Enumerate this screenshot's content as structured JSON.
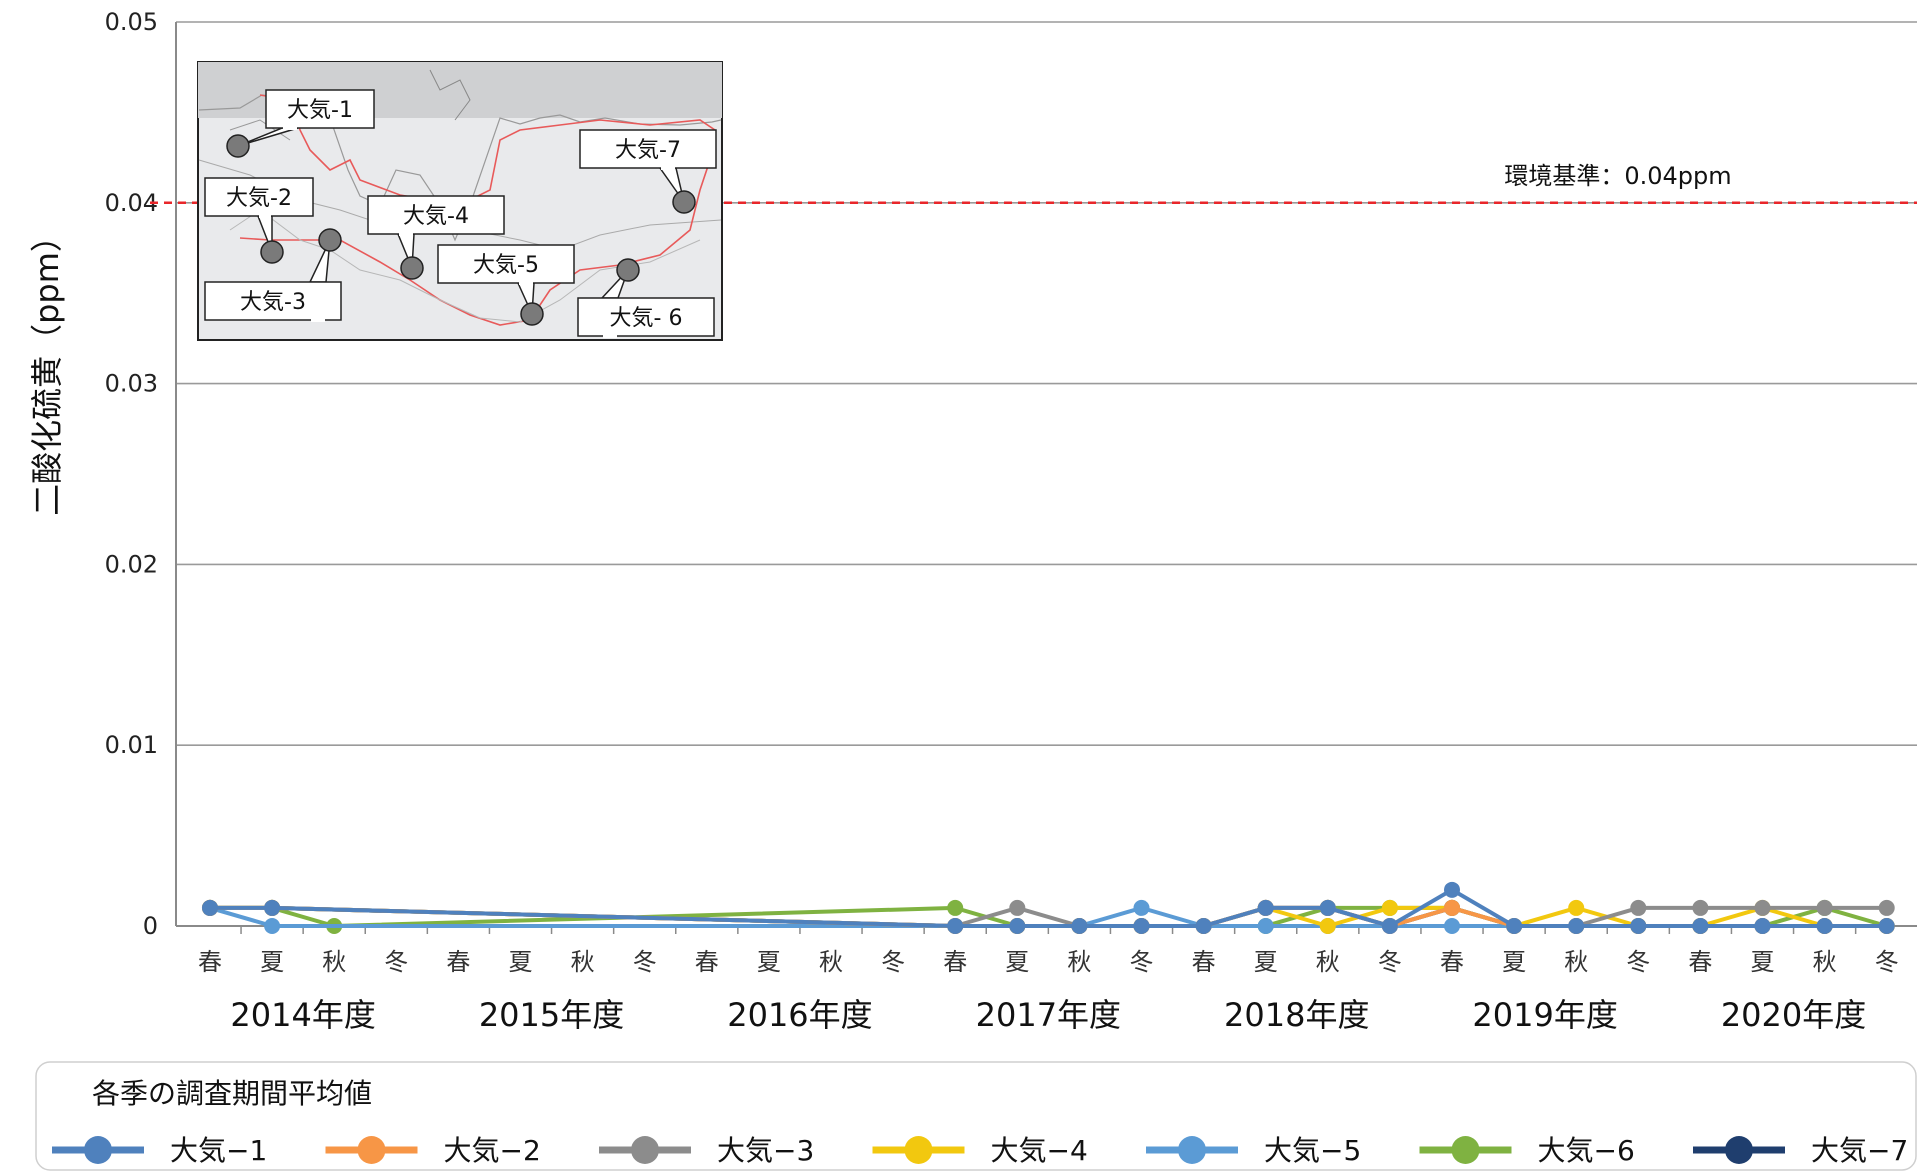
{
  "chart_data": {
    "type": "line",
    "ylabel": "二酸化硫黄（ppm）",
    "xlabel": "",
    "ylim": [
      0,
      0.05
    ],
    "yticks": [
      "0",
      "0.01",
      "0.02",
      "0.03",
      "0.04",
      "0.05"
    ],
    "grid": true,
    "seasons": [
      "春",
      "夏",
      "秋",
      "冬"
    ],
    "years": [
      "2014年度",
      "2015年度",
      "2016年度",
      "2017年度",
      "2018年度",
      "2019年度",
      "2020年度"
    ],
    "reference_line": {
      "value": 0.04,
      "label": "環境基準：0.04ppm",
      "color": "#e8262a"
    },
    "legend": {
      "title": "各季の調査期間平均値",
      "placement": "bottom"
    },
    "series": [
      {
        "name": "大気-1",
        "color": "#4f81bd",
        "points": [
          [
            0,
            0.001
          ],
          [
            1,
            0.001
          ],
          [
            12,
            0
          ],
          [
            13,
            0
          ],
          [
            14,
            0
          ],
          [
            15,
            0
          ],
          [
            16,
            0
          ],
          [
            17,
            0.001
          ],
          [
            18,
            0.001
          ],
          [
            19,
            0
          ],
          [
            20,
            0.002
          ],
          [
            21,
            0
          ],
          [
            22,
            0
          ],
          [
            23,
            0
          ],
          [
            24,
            0
          ],
          [
            25,
            0
          ],
          [
            26,
            0
          ],
          [
            27,
            0
          ]
        ]
      },
      {
        "name": "大気-2",
        "color": "#f79646",
        "points": [
          [
            0,
            0.001
          ],
          [
            1,
            0.001
          ],
          [
            12,
            0
          ],
          [
            13,
            0
          ],
          [
            14,
            0
          ],
          [
            15,
            0
          ],
          [
            16,
            0
          ],
          [
            17,
            0.001
          ],
          [
            18,
            0.001
          ],
          [
            19,
            0
          ],
          [
            20,
            0.001
          ],
          [
            21,
            0
          ],
          [
            22,
            0
          ],
          [
            23,
            0
          ],
          [
            24,
            0
          ],
          [
            25,
            0
          ],
          [
            26,
            0
          ],
          [
            27,
            0
          ]
        ]
      },
      {
        "name": "大気-3",
        "color": "#8c8c8c",
        "points": [
          [
            0,
            0.001
          ],
          [
            1,
            0.001
          ],
          [
            12,
            0
          ],
          [
            13,
            0.001
          ],
          [
            14,
            0
          ],
          [
            15,
            0
          ],
          [
            16,
            0
          ],
          [
            17,
            0.001
          ],
          [
            18,
            0.001
          ],
          [
            19,
            0
          ],
          [
            20,
            0.001
          ],
          [
            21,
            0
          ],
          [
            22,
            0
          ],
          [
            23,
            0.001
          ],
          [
            24,
            0.001
          ],
          [
            25,
            0.001
          ],
          [
            26,
            0.001
          ],
          [
            27,
            0.001
          ]
        ]
      },
      {
        "name": "大気-4",
        "color": "#f2c80f",
        "points": [
          [
            0,
            0.001
          ],
          [
            1,
            0.001
          ],
          [
            12,
            0
          ],
          [
            13,
            0
          ],
          [
            14,
            0
          ],
          [
            15,
            0
          ],
          [
            16,
            0
          ],
          [
            17,
            0.001
          ],
          [
            18,
            0
          ],
          [
            19,
            0.001
          ],
          [
            20,
            0.001
          ],
          [
            21,
            0
          ],
          [
            22,
            0.001
          ],
          [
            23,
            0
          ],
          [
            24,
            0
          ],
          [
            25,
            0.001
          ],
          [
            26,
            0
          ],
          [
            27,
            0
          ]
        ]
      },
      {
        "name": "大気-5",
        "color": "#5b9bd5",
        "points": [
          [
            0,
            0.001
          ],
          [
            1,
            0
          ],
          [
            12,
            0
          ],
          [
            13,
            0
          ],
          [
            14,
            0
          ],
          [
            15,
            0.001
          ],
          [
            16,
            0
          ],
          [
            17,
            0
          ],
          [
            18,
            0
          ],
          [
            19,
            0
          ],
          [
            20,
            0
          ],
          [
            21,
            0
          ],
          [
            22,
            0
          ],
          [
            23,
            0
          ],
          [
            24,
            0
          ],
          [
            25,
            0
          ],
          [
            26,
            0
          ],
          [
            27,
            0
          ]
        ]
      },
      {
        "name": "大気-6",
        "color": "#7fb241",
        "points": [
          [
            0,
            0.001
          ],
          [
            1,
            0.001
          ],
          [
            2,
            0
          ],
          [
            12,
            0.001
          ],
          [
            13,
            0
          ],
          [
            14,
            0
          ],
          [
            15,
            0
          ],
          [
            16,
            0
          ],
          [
            17,
            0
          ],
          [
            18,
            0.001
          ],
          [
            19,
            0.001
          ],
          [
            20,
            0.001
          ],
          [
            21,
            0
          ],
          [
            22,
            0
          ],
          [
            23,
            0
          ],
          [
            24,
            0
          ],
          [
            25,
            0
          ],
          [
            26,
            0.001
          ],
          [
            27,
            0
          ]
        ]
      },
      {
        "name": "大気-7",
        "color": "#1f3e6e",
        "points": [
          [
            0,
            0.001
          ],
          [
            1,
            0.001
          ],
          [
            12,
            0
          ],
          [
            13,
            0
          ],
          [
            14,
            0
          ],
          [
            15,
            0
          ],
          [
            16,
            0
          ],
          [
            17,
            0.001
          ],
          [
            18,
            0.001
          ],
          [
            19,
            0
          ],
          [
            20,
            0.001
          ],
          [
            21,
            0
          ],
          [
            22,
            0
          ],
          [
            23,
            0
          ],
          [
            24,
            0
          ],
          [
            25,
            0
          ],
          [
            26,
            0
          ],
          [
            27,
            0
          ]
        ]
      }
    ]
  },
  "inset_map": {
    "stations": [
      {
        "label": "大気-1"
      },
      {
        "label": "大気-2"
      },
      {
        "label": "大気-3"
      },
      {
        "label": "大気-4"
      },
      {
        "label": "大気-5"
      },
      {
        "label": "大気- 6"
      },
      {
        "label": "大気-7"
      }
    ]
  },
  "legend_labels": [
    "大気−1",
    "大気−2",
    "大気−3",
    "大気−4",
    "大気−5",
    "大気−6",
    "大気−7"
  ]
}
